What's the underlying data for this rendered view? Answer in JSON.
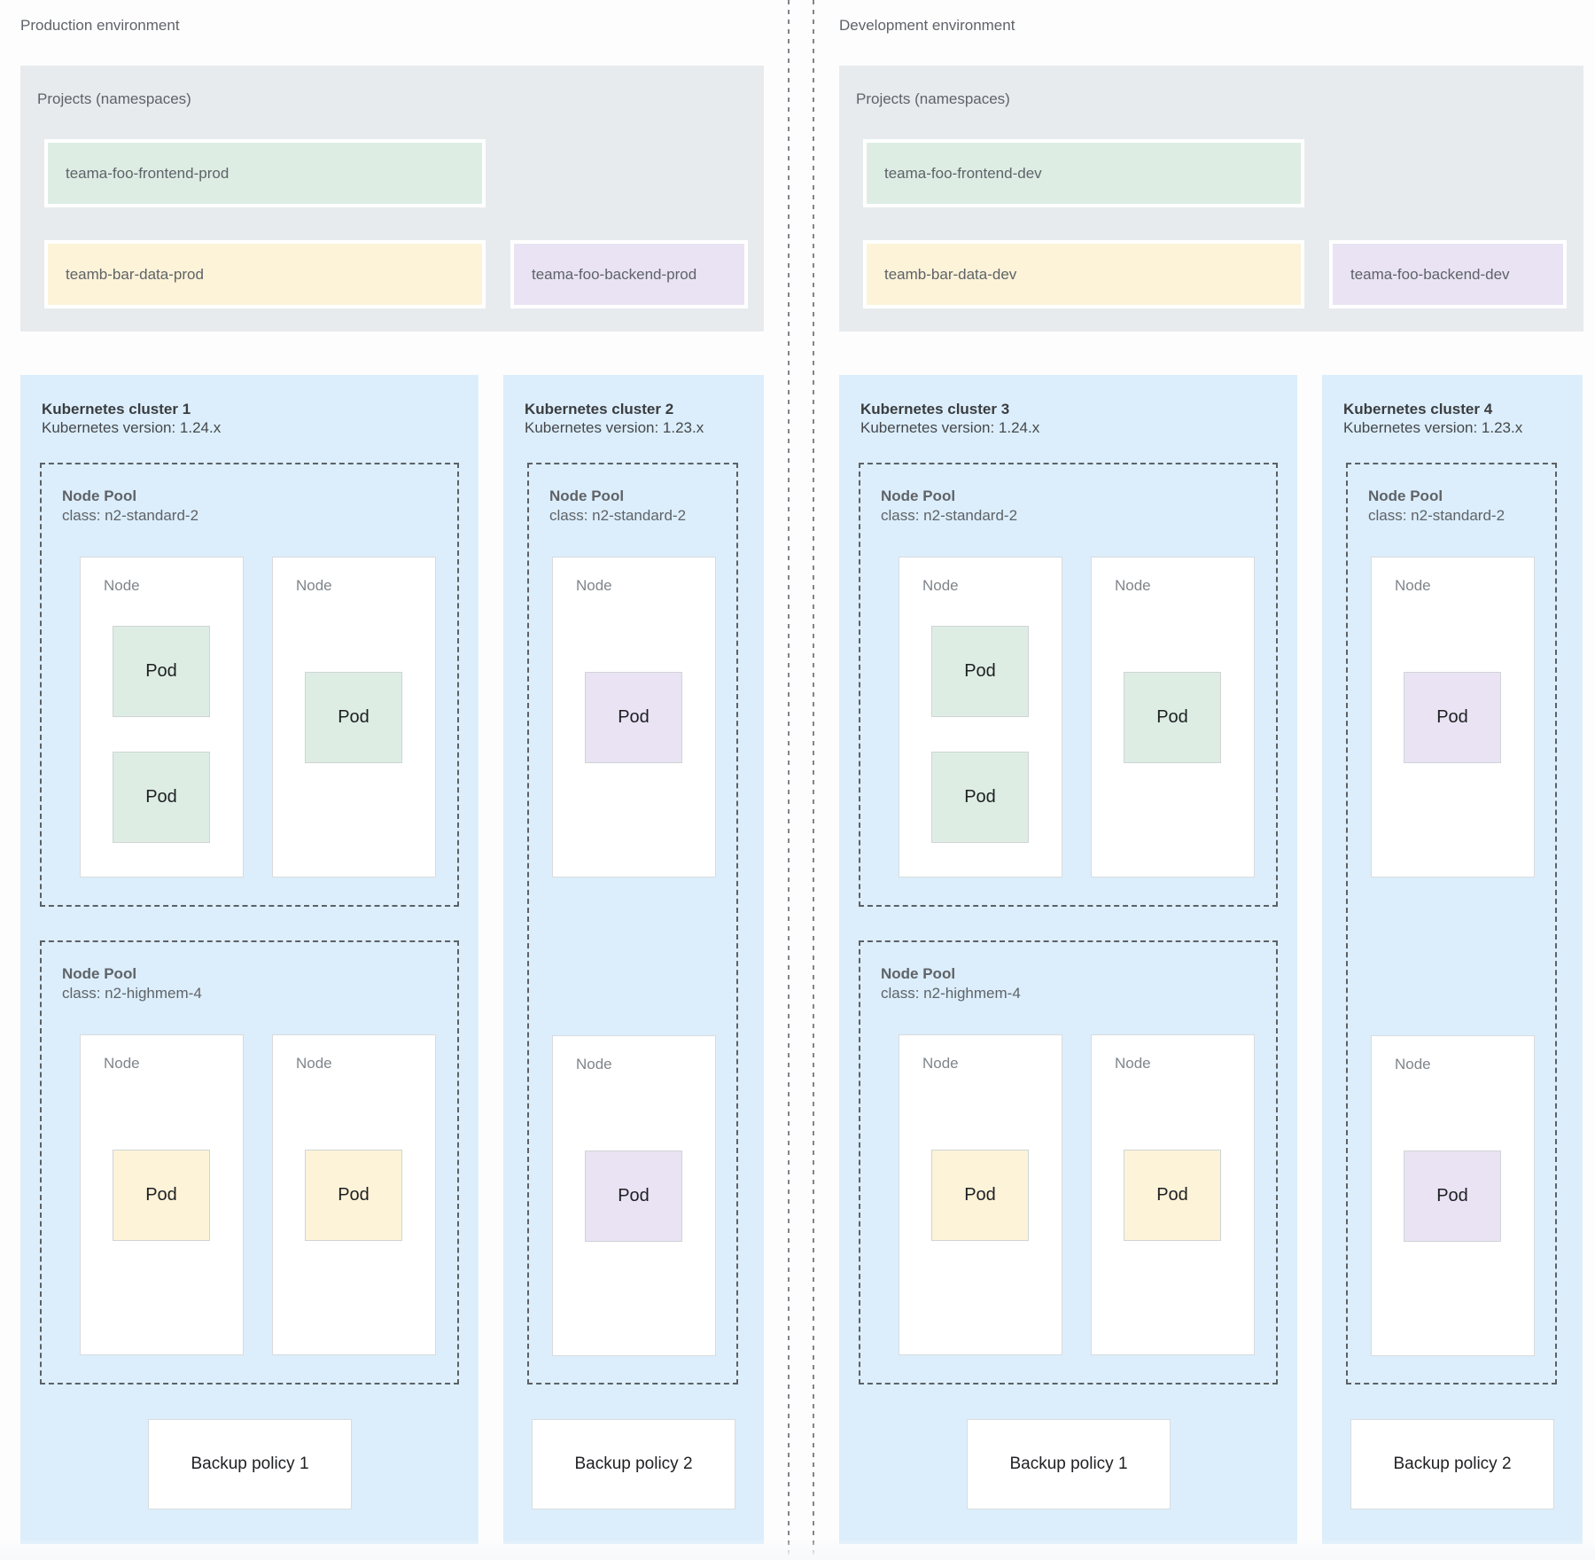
{
  "labels": {
    "node_pool": "Node Pool",
    "node": "Node",
    "pod": "Pod"
  },
  "colors": {
    "cluster_background": "#dceefb",
    "projects_background": "#e8ebee",
    "namespace_green": "#ddede4",
    "namespace_yellow": "#fcf3d8",
    "namespace_purple": "#e9e3f4",
    "dashed_border": "#5c6166",
    "text_gray": "#5f6368"
  },
  "environments": [
    {
      "label": "Production environment",
      "projects": {
        "title": "Projects (namespaces)",
        "namespaces": [
          {
            "name": "teama-foo-frontend-prod",
            "color": "green"
          },
          {
            "name": "teamb-bar-data-prod",
            "color": "yellow"
          },
          {
            "name": "teama-foo-backend-prod",
            "color": "purple"
          }
        ]
      },
      "clusters": [
        {
          "title": "Kubernetes cluster 1",
          "version": "Kubernetes version: 1.24.x",
          "pools": [
            {
              "class": "class: n2-standard-2"
            },
            {
              "class": "class: n2-highmem-4"
            }
          ],
          "backup": "Backup policy 1"
        },
        {
          "title": "Kubernetes cluster 2",
          "version": "Kubernetes version: 1.23.x",
          "pools": [
            {
              "class": "class: n2-standard-2"
            }
          ],
          "backup": "Backup policy 2"
        }
      ]
    },
    {
      "label": "Development environment",
      "projects": {
        "title": "Projects (namespaces)",
        "namespaces": [
          {
            "name": "teama-foo-frontend-dev",
            "color": "green"
          },
          {
            "name": "teamb-bar-data-dev",
            "color": "yellow"
          },
          {
            "name": "teama-foo-backend-dev",
            "color": "purple"
          }
        ]
      },
      "clusters": [
        {
          "title": "Kubernetes cluster 3",
          "version": "Kubernetes version: 1.24.x",
          "pools": [
            {
              "class": "class: n2-standard-2"
            },
            {
              "class": "class: n2-highmem-4"
            }
          ],
          "backup": "Backup policy 1"
        },
        {
          "title": "Kubernetes cluster 4",
          "version": "Kubernetes version: 1.23.x",
          "pools": [
            {
              "class": "class: n2-standard-2"
            }
          ],
          "backup": "Backup policy 2"
        }
      ]
    }
  ]
}
